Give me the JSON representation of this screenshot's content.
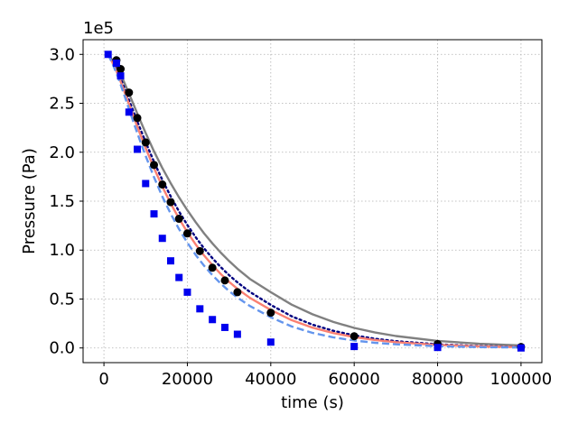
{
  "chart_data": {
    "type": "line",
    "xlabel": "time (s)",
    "ylabel": "Pressure (Pa)",
    "y_offset_label": "1e5",
    "xlim": [
      -5000,
      105000
    ],
    "ylim": [
      -15000,
      315000
    ],
    "grid": true,
    "x_ticks": [
      0,
      20000,
      40000,
      60000,
      80000,
      100000
    ],
    "x_tick_labels": [
      "0",
      "20000",
      "40000",
      "60000",
      "80000",
      "100000"
    ],
    "y_ticks": [
      0,
      50000,
      100000,
      150000,
      200000,
      250000,
      300000
    ],
    "y_tick_labels": [
      "0.0",
      "0.5",
      "1.0",
      "1.5",
      "2.0",
      "2.5",
      "3.0"
    ],
    "series": [
      {
        "kind": "line",
        "style": "solid",
        "color": "#808080",
        "x": [
          1000,
          2000,
          3000,
          4000,
          5000,
          6000,
          7000,
          8000,
          9000,
          10000,
          12000,
          14000,
          16000,
          18000,
          20000,
          22000,
          24000,
          26000,
          28000,
          30000,
          32000,
          35000,
          40000,
          45000,
          50000,
          55000,
          60000,
          65000,
          70000,
          80000,
          90000,
          100000
        ],
        "y": [
          300000,
          294200,
          287800,
          279400,
          270000,
          260000,
          249800,
          239600,
          229500,
          219600,
          201000,
          183900,
          168300,
          154000,
          140700,
          128500,
          117200,
          106900,
          97500,
          88900,
          81000,
          70500,
          57000,
          44300,
          34400,
          26600,
          20500,
          15800,
          12200,
          7200,
          4300,
          2600
        ]
      },
      {
        "kind": "line",
        "style": "dotted",
        "color": "#000080",
        "x": [
          1000,
          2000,
          3000,
          4000,
          5000,
          6000,
          7000,
          8000,
          9000,
          10000,
          12000,
          14000,
          16000,
          18000,
          20000,
          22000,
          24000,
          26000,
          28000,
          30000,
          32000,
          35000,
          40000,
          45000,
          50000,
          55000,
          60000,
          65000,
          70000,
          80000,
          90000,
          100000
        ],
        "y": [
          300000,
          293000,
          285000,
          275000,
          264500,
          253500,
          242500,
          231500,
          220800,
          210300,
          190300,
          171800,
          154900,
          139500,
          125600,
          113100,
          101800,
          91700,
          82600,
          74400,
          67000,
          57300,
          44000,
          32400,
          23800,
          17500,
          12800,
          9400,
          6900,
          3700,
          2000,
          1100
        ]
      },
      {
        "kind": "line",
        "style": "solid",
        "color": "#fa8072",
        "x": [
          1000,
          2000,
          3000,
          4000,
          5000,
          6000,
          7000,
          8000,
          9000,
          10000,
          12000,
          14000,
          16000,
          18000,
          20000,
          22000,
          24000,
          26000,
          28000,
          30000,
          32000,
          35000,
          40000,
          45000,
          50000,
          55000,
          60000,
          65000,
          70000,
          80000,
          90000,
          100000
        ],
        "y": [
          300000,
          292000,
          283000,
          272000,
          260800,
          249200,
          237600,
          226200,
          215100,
          204300,
          183800,
          164900,
          147700,
          132200,
          118300,
          105800,
          94600,
          84600,
          75600,
          67600,
          60400,
          51200,
          38800,
          28400,
          20800,
          15200,
          11100,
          8100,
          5900,
          3100,
          1600,
          900
        ]
      },
      {
        "kind": "line",
        "style": "dashed",
        "color": "#6495ed",
        "x": [
          1000,
          2000,
          3000,
          4000,
          5000,
          6000,
          7000,
          8000,
          9000,
          10000,
          12000,
          14000,
          16000,
          18000,
          20000,
          22000,
          24000,
          26000,
          28000,
          30000,
          32000,
          35000,
          40000,
          45000,
          50000,
          55000,
          60000,
          65000,
          70000,
          80000,
          90000,
          100000
        ],
        "y": [
          300000,
          291000,
          281000,
          269000,
          256800,
          244300,
          231800,
          219600,
          207700,
          196200,
          174500,
          154800,
          137200,
          121500,
          107500,
          95100,
          84100,
          74400,
          65800,
          58200,
          51500,
          42900,
          31400,
          22000,
          15400,
          10800,
          7600,
          5300,
          3700,
          1800,
          900,
          500
        ]
      },
      {
        "kind": "scatter",
        "marker": "circle",
        "color": "#000000",
        "x": [
          3000,
          4000,
          6000,
          8000,
          10000,
          12000,
          14000,
          16000,
          18000,
          20000,
          23000,
          26000,
          29000,
          32000,
          40000,
          60000,
          80000,
          100000
        ],
        "y": [
          294000,
          285000,
          261000,
          235000,
          210000,
          187000,
          167000,
          149000,
          132000,
          117000,
          99000,
          82000,
          69000,
          57000,
          36000,
          12000,
          4000,
          1000
        ]
      },
      {
        "kind": "scatter",
        "marker": "square",
        "color": "#0000ee",
        "x": [
          1000,
          3000,
          4000,
          6000,
          8000,
          10000,
          12000,
          14000,
          16000,
          18000,
          20000,
          23000,
          26000,
          29000,
          32000,
          40000,
          60000,
          80000,
          100000
        ],
        "y": [
          300000,
          291000,
          278000,
          241000,
          203000,
          168000,
          137000,
          112000,
          89000,
          72000,
          57000,
          40000,
          29000,
          21000,
          14000,
          6000,
          1500,
          500,
          0
        ]
      }
    ]
  }
}
